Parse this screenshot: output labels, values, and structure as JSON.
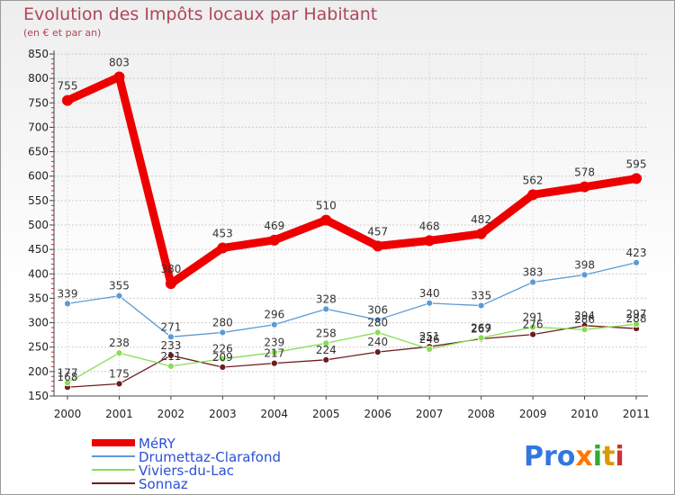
{
  "chart_data": {
    "type": "line",
    "title": "Evolution des Impôts locaux par Habitant",
    "subtitle": "(en € et par an)",
    "categories": [
      "2000",
      "2001",
      "2002",
      "2003",
      "2004",
      "2005",
      "2006",
      "2007",
      "2008",
      "2009",
      "2010",
      "2011"
    ],
    "ylim": [
      150,
      850
    ],
    "yticks": [
      150,
      200,
      250,
      300,
      350,
      400,
      450,
      500,
      550,
      600,
      650,
      700,
      750,
      800,
      850
    ],
    "grid": true,
    "legend_position": "bottom-left",
    "series": [
      {
        "name": "MéRY",
        "color": "#ee0000",
        "values": [
          755,
          803,
          380,
          453,
          469,
          510,
          457,
          468,
          482,
          562,
          578,
          595
        ]
      },
      {
        "name": "Drumettaz-Clarafond",
        "color": "#5b9bd5",
        "values": [
          339,
          355,
          271,
          280,
          296,
          328,
          306,
          340,
          335,
          383,
          398,
          423
        ]
      },
      {
        "name": "Viviers-du-Lac",
        "color": "#88dd55",
        "values": [
          177,
          238,
          211,
          226,
          239,
          258,
          280,
          246,
          269,
          291,
          286,
          297
        ]
      },
      {
        "name": "Sonnaz",
        "color": "#6e1c1c",
        "values": [
          168,
          175,
          233,
          209,
          217,
          224,
          240,
          251,
          267,
          276,
          294,
          288
        ]
      }
    ]
  },
  "logo": {
    "text": "Proxiti"
  }
}
